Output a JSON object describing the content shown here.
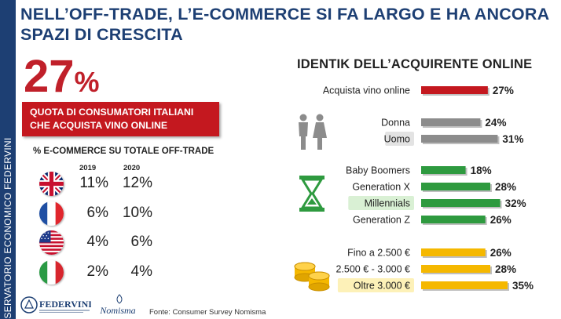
{
  "sidebar": {
    "text": "OSSERVATORIO ECONOMICO  FEDERVINI"
  },
  "title": "NELL’OFF-TRADE, L’E-COMMERCE SI FA LARGO E HA ANCORA SPAZI DI CRESCITA",
  "headline_stat": {
    "value": "27",
    "unit": "%"
  },
  "stat_box": {
    "line1": "QUOTA DI CONSUMATORI ITALIANI",
    "line2": "CHE ACQUISTA VINO ONLINE"
  },
  "ecommerce_table": {
    "title": "% E-COMMERCE SU TOTALE OFF-TRADE",
    "years": [
      "2019",
      "2020"
    ],
    "rows": [
      {
        "flag": "uk-flag-icon",
        "v2019": "11%",
        "v2020": "12%"
      },
      {
        "flag": "france-flag-icon",
        "v2019": "6%",
        "v2020": "10%"
      },
      {
        "flag": "usa-flag-icon",
        "v2019": "4%",
        "v2020": "6%"
      },
      {
        "flag": "italy-flag-icon",
        "v2019": "2%",
        "v2020": "4%"
      }
    ]
  },
  "footer": {
    "logo1": "FEDERVINI",
    "logo2": "Nomisma",
    "source": "Fonte: Consumer Survey Nomisma"
  },
  "icons": [
    "people-icon",
    "hourglass-icon",
    "coins-icon"
  ],
  "colors": {
    "brand_blue": "#1d3f73",
    "red": "#c4181f",
    "gray": "#8c8c8c",
    "green": "#2e9a3f",
    "yellow": "#f5b800",
    "highlight_gray": "#e3e3e3",
    "highlight_green": "#d9f0d4",
    "highlight_yellow": "#fdf1b8"
  },
  "chart_data": {
    "type": "bar",
    "orientation": "horizontal",
    "title": "IDENTIK DELL’ACQUIRENTE ONLINE",
    "xlim": [
      0,
      35
    ],
    "groups": [
      {
        "name": "",
        "color": "#c4181f",
        "bars": [
          {
            "label": "Acquista vino online",
            "value": 27,
            "value_label": "27%",
            "highlight": false
          }
        ]
      },
      {
        "name": "",
        "color": "#8c8c8c",
        "bars": [
          {
            "label": "Donna",
            "value": 24,
            "value_label": "24%",
            "highlight": false
          },
          {
            "label": "Uomo",
            "value": 31,
            "value_label": "31%",
            "highlight": true
          }
        ]
      },
      {
        "name": "",
        "color": "#2e9a3f",
        "bars": [
          {
            "label": "Baby Boomers",
            "value": 18,
            "value_label": "18%",
            "highlight": false
          },
          {
            "label": "Generation X",
            "value": 28,
            "value_label": "28%",
            "highlight": false
          },
          {
            "label": "Millennials",
            "value": 32,
            "value_label": "32%",
            "highlight": true
          },
          {
            "label": "Generation Z",
            "value": 26,
            "value_label": "26%",
            "highlight": false
          }
        ]
      },
      {
        "name": "",
        "color": "#f5b800",
        "bars": [
          {
            "label": "Fino a 2.500 €",
            "value": 26,
            "value_label": "26%",
            "highlight": false
          },
          {
            "label": "2.500 € - 3.000 €",
            "value": 28,
            "value_label": "28%",
            "highlight": false
          },
          {
            "label": "Oltre 3.000 €",
            "value": 35,
            "value_label": "35%",
            "highlight": true
          }
        ]
      }
    ]
  }
}
